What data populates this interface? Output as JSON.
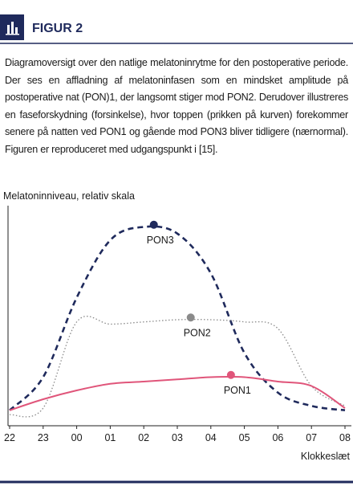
{
  "header": {
    "title": "FIGUR 2"
  },
  "caption": "Diagramoversigt over den natlige melatoninrytme for den postoperative periode. Der ses en affladning af melatoninfasen som en mindsket amplitude på postoperative nat (PON)1, der langsomt stiger mod PON2. Derudover illustreres en faseforskydning (forsinkelse), hvor toppen (prikken på kurven) forekommer senere på natten ved PON1 og gående mod PON3 bliver tidligere (nærnormal). Figuren er reproduceret med udgangspunkt i [15].",
  "chart_data": {
    "type": "line",
    "ylabel": "Melatoninniveau, relativ skala",
    "xlabel": "Klokkeslæt",
    "x": [
      22,
      23,
      24,
      25,
      26,
      27,
      28,
      29,
      30,
      31,
      32
    ],
    "xlim": [
      22,
      32
    ],
    "xticks": [
      22,
      23,
      {
        "value": 24,
        "label": "00"
      },
      {
        "value": 25,
        "label": "01"
      },
      {
        "value": 26,
        "label": "02"
      },
      {
        "value": 27,
        "label": "03"
      },
      {
        "value": 28,
        "label": "04"
      },
      {
        "value": 29,
        "label": "05"
      },
      {
        "value": 30,
        "label": "06"
      },
      {
        "value": 31,
        "label": "07"
      },
      {
        "value": 32,
        "label": "08"
      }
    ],
    "ylim": [
      0,
      100
    ],
    "series": [
      {
        "name": "PON3",
        "color": "#1f2a5c",
        "style": "dashed",
        "values": [
          7,
          22,
          58,
          84,
          90,
          87,
          69,
          33,
          15,
          9,
          7
        ],
        "peak": {
          "x": 26.3,
          "value": 91
        }
      },
      {
        "name": "PON2",
        "color": "#8a8a8a",
        "style": "dotted",
        "values": [
          5,
          8,
          47,
          46,
          47,
          48,
          48,
          47,
          44,
          18,
          9
        ],
        "peak": {
          "x": 27.4,
          "value": 49
        }
      },
      {
        "name": "PON1",
        "color": "#e0557a",
        "style": "solid",
        "values": [
          7,
          12,
          16,
          19,
          20,
          21,
          22,
          22,
          20,
          18,
          8
        ],
        "peak": {
          "x": 28.6,
          "value": 23
        }
      }
    ]
  }
}
